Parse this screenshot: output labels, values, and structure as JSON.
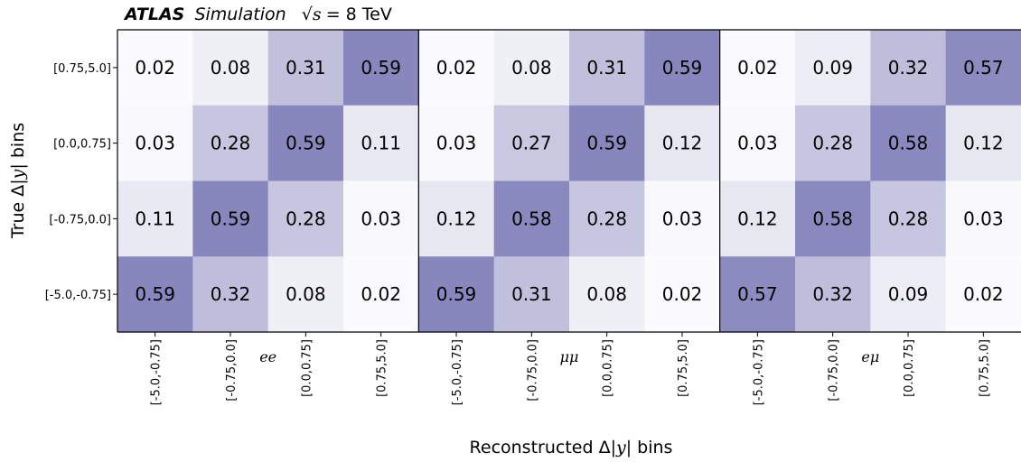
{
  "header": {
    "experiment": "ATLAS",
    "label": "Simulation",
    "energy_sqrt": "√s",
    "energy_value": " = 8 TeV"
  },
  "axes": {
    "ylabel_prefix": "True Δ",
    "ylabel_var": "|y|",
    "ylabel_suffix": " bins",
    "xlabel_prefix": "Reconstructed Δ",
    "xlabel_var": "|y|",
    "xlabel_suffix": " bins"
  },
  "colors": {
    "low": "#ffffff",
    "high": "#8585bd",
    "text": "#000000",
    "frame": "#000000"
  },
  "chart_data": {
    "type": "heatmap",
    "title": "ATLAS Simulation √s = 8 TeV",
    "xlabel": "Reconstructed Δ|y| bins",
    "ylabel": "True Δ|y| bins",
    "x_categories": [
      "[-5.0,-0.75]",
      "[-0.75,0.0]",
      "[0.0,0.75]",
      "[0.75,5.0]"
    ],
    "y_categories_top_to_bottom": [
      "[0.75,5.0]",
      "[0.0,0.75]",
      "[-0.75,0.0]",
      "[-5.0,-0.75]"
    ],
    "color_range": [
      0,
      0.6
    ],
    "panels": [
      {
        "channel": "ee",
        "values": [
          [
            0.02,
            0.08,
            0.31,
            0.59
          ],
          [
            0.03,
            0.28,
            0.59,
            0.11
          ],
          [
            0.11,
            0.59,
            0.28,
            0.03
          ],
          [
            0.59,
            0.32,
            0.08,
            0.02
          ]
        ]
      },
      {
        "channel": "μμ",
        "values": [
          [
            0.02,
            0.08,
            0.31,
            0.59
          ],
          [
            0.03,
            0.27,
            0.59,
            0.12
          ],
          [
            0.12,
            0.58,
            0.28,
            0.03
          ],
          [
            0.59,
            0.31,
            0.08,
            0.02
          ]
        ]
      },
      {
        "channel": "eμ",
        "values": [
          [
            0.02,
            0.09,
            0.32,
            0.57
          ],
          [
            0.03,
            0.28,
            0.58,
            0.12
          ],
          [
            0.12,
            0.58,
            0.28,
            0.03
          ],
          [
            0.57,
            0.32,
            0.09,
            0.02
          ]
        ]
      }
    ]
  }
}
